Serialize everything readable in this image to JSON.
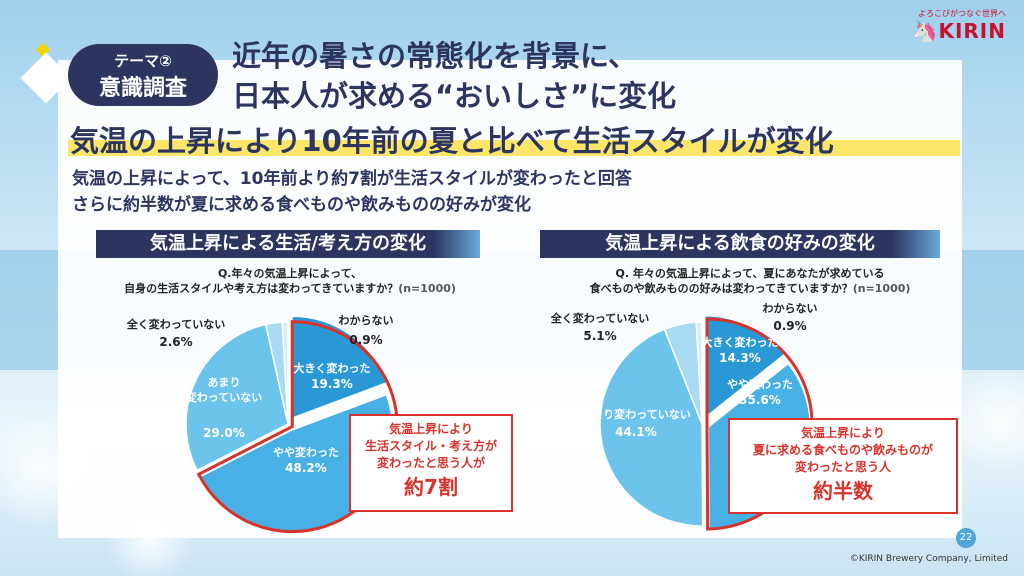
{
  "theme": {
    "label": "テーマ②",
    "title": "意識調査"
  },
  "main_title": {
    "line1": "近年の暑さの常態化を背景に、",
    "line2": "日本人が求める“おいしさ”に変化"
  },
  "logo": {
    "tagline": "よろこびがつなぐ世界へ",
    "brand": "KIRIN"
  },
  "subheading": "気温の上昇により10年前の夏と比べて生活スタイルが変化",
  "description": {
    "line1": "気温の上昇によって、10年前より約7割が生活スタイルが変わったと回答",
    "line2": "さらに約半数が夏に求める食べものや飲みものの好みが変化"
  },
  "colors": {
    "navy": "#2c3560",
    "accent_red": "#d9322b",
    "highlight_yellow": "#fbe66a",
    "pie_dark": "#2b98d6",
    "pie_mid": "#47b0e4",
    "pie_light": "#6cc3ec",
    "pie_pale": "#c8e8f7"
  },
  "chart_data": [
    {
      "type": "pie",
      "title": "気温上昇による生活/考え方の変化",
      "question_line1": "Q.年々の気温上昇によって、",
      "question_line2": "自身の生活スタイルや考え方は変わってきていますか？",
      "sample": "(n=1000)",
      "slices": [
        {
          "label": "大きく変わった",
          "value": 19.3,
          "display": "19.3%",
          "color": "#2b98d6"
        },
        {
          "label": "やや変わった",
          "value": 48.2,
          "display": "48.2%",
          "color": "#47b0e4"
        },
        {
          "label_lines": [
            "あまり",
            "変わっていない"
          ],
          "label": "あまり変わっていない",
          "value": 29.0,
          "display": "29.0%",
          "color": "#6cc3ec"
        },
        {
          "label": "全く変わっていない",
          "value": 2.6,
          "display": "2.6%",
          "color": "#a9daf3"
        },
        {
          "label": "わからない",
          "value": 0.9,
          "display": "0.9%",
          "color": "#d4edf9"
        }
      ],
      "callout": {
        "line1": "気温上昇により",
        "line2": "生活スタイル・考え方が",
        "line3": "変わったと思う人が",
        "big": "約7割"
      }
    },
    {
      "type": "pie",
      "title": "気温上昇による飲食の好みの変化",
      "question_line1": "Q. 年々の気温上昇によって、夏にあなたが求めている",
      "question_line2": "食べものや飲みものの好みは変わってきていますか？",
      "sample": "(n=1000)",
      "slices": [
        {
          "label": "大きく変わった",
          "value": 14.3,
          "display": "14.3%",
          "color": "#2b98d6"
        },
        {
          "label": "やや変わった",
          "value": 35.6,
          "display": "35.6%",
          "color": "#47b0e4"
        },
        {
          "label": "あまり変わっていない",
          "value": 44.1,
          "display": "44.1%",
          "color": "#6cc3ec"
        },
        {
          "label": "全く変わっていない",
          "value": 5.1,
          "display": "5.1%",
          "color": "#a9daf3"
        },
        {
          "label": "わからない",
          "value": 0.9,
          "display": "0.9%",
          "color": "#d4edf9"
        }
      ],
      "callout": {
        "line1": "気温上昇により",
        "line2": "夏に求める食べものや飲みものが",
        "line3": "変わったと思う人",
        "big": "約半数"
      }
    }
  ],
  "page_number": "22",
  "copyright": "©KIRIN Brewery Company, Limited"
}
